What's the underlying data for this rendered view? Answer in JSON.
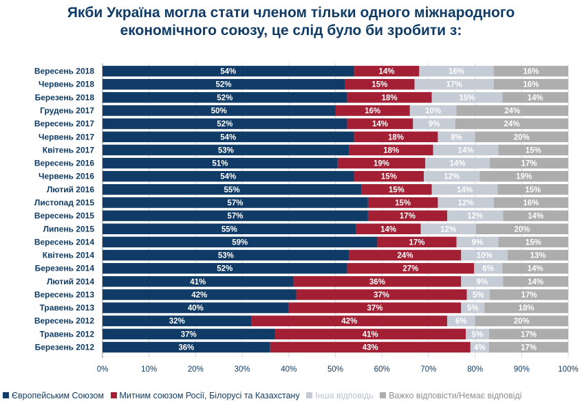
{
  "title_line1": "Якби Україна могла стати членом тільки одного міжнародного",
  "title_line2": "економічного союзу, це слід було би зробити з:",
  "colors": {
    "eu": "#0f3b66",
    "customs": "#a31f34",
    "other": "#c6ccd6",
    "dk": "#adadad",
    "text": "#0f3b66"
  },
  "chart_data": {
    "type": "bar",
    "orientation": "horizontal-stacked-100",
    "categories": [
      "Вересень 2018",
      "Червень 2018",
      "Березень 2018",
      "Грудень 2017",
      "Вересень 2017",
      "Червень 2017",
      "Квітень 2017",
      "Вересень 2016",
      "Червень 2016",
      "Лютий 2016",
      "Листопад 2015",
      "Вересень 2015",
      "Липень 2015",
      "Вересень 2014",
      "Квітень 2014",
      "Березень 2014",
      "Лютий 2014",
      "Вересень 2013",
      "Травень 2013",
      "Вересень 2012",
      "Травень 2012",
      "Березень 2012"
    ],
    "series": [
      {
        "name": "Європейським Союзом",
        "color": "#0f3b66",
        "values": [
          54,
          52,
          52,
          50,
          52,
          54,
          53,
          51,
          54,
          55,
          57,
          57,
          55,
          59,
          53,
          52,
          41,
          42,
          40,
          32,
          37,
          36
        ]
      },
      {
        "name": "Митним союзом Росії, Білорусі та Казахстану",
        "color": "#a31f34",
        "values": [
          14,
          15,
          18,
          16,
          14,
          18,
          18,
          19,
          15,
          15,
          15,
          17,
          14,
          17,
          24,
          27,
          36,
          37,
          37,
          42,
          41,
          43
        ]
      },
      {
        "name": "Інша відповідь",
        "color": "#c6ccd6",
        "values": [
          16,
          17,
          15,
          10,
          9,
          8,
          14,
          14,
          12,
          14,
          12,
          12,
          12,
          9,
          10,
          6,
          9,
          5,
          5,
          6,
          5,
          4
        ]
      },
      {
        "name": "Важко відповісти/Немає відповіді",
        "color": "#adadad",
        "values": [
          16,
          16,
          14,
          24,
          24,
          20,
          15,
          17,
          19,
          15,
          16,
          14,
          20,
          15,
          13,
          14,
          14,
          17,
          18,
          20,
          17,
          17
        ]
      }
    ],
    "xlim": [
      0,
      100
    ],
    "xticks": [
      "0%",
      "10%",
      "20%",
      "30%",
      "40%",
      "50%",
      "60%",
      "70%",
      "80%",
      "90%",
      "100%"
    ],
    "legend_position": "bottom"
  }
}
